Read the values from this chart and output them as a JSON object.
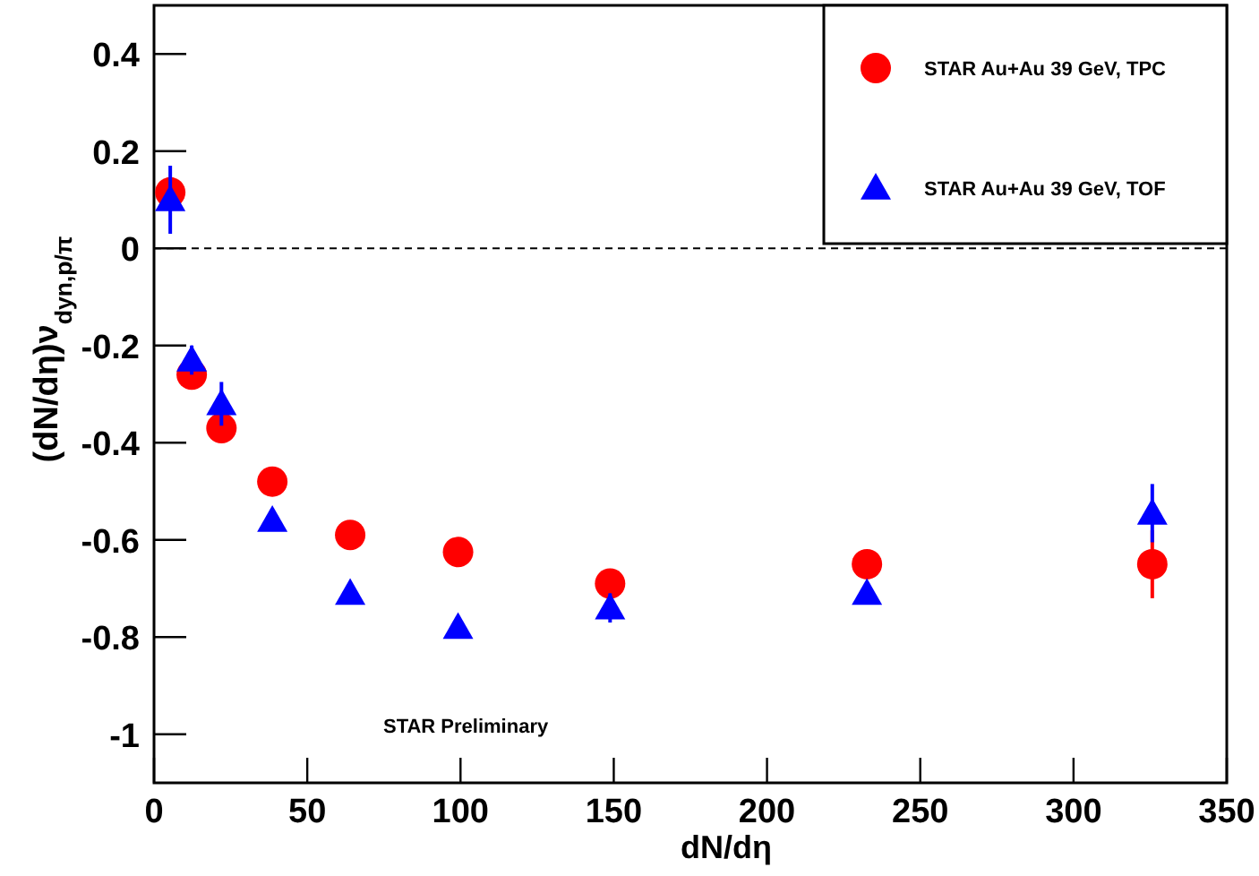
{
  "chart_data": {
    "type": "scatter",
    "xlabel": "dN/dη",
    "ylabel": "(dN/dη)ν$_{dyn,p/π}$",
    "xlim": [
      0,
      350
    ],
    "ylim": [
      -1.1,
      0.5
    ],
    "xticks": [
      0,
      50,
      100,
      150,
      200,
      250,
      300,
      350
    ],
    "yticks": [
      -1,
      -0.8,
      -0.6,
      -0.4,
      -0.2,
      0,
      0.2,
      0.4
    ],
    "grid": false,
    "legend": "top right",
    "ref_lines": [
      {
        "axis": "y",
        "value": 0,
        "line_style": "dashed",
        "color": "#000000"
      }
    ],
    "annotations": [
      "STAR Preliminary"
    ],
    "series": [
      {
        "name": "STAR Au+Au 39 GeV, TPC",
        "color": "#ff0000",
        "marker": "circle",
        "x": [
          5.3,
          12.3,
          22,
          38.6,
          64,
          99.2,
          148.8,
          232.6,
          325.7
        ],
        "values": [
          0.115,
          -0.26,
          -0.37,
          -0.48,
          -0.59,
          -0.625,
          -0.69,
          -0.65,
          -0.65
        ],
        "errors": [
          null,
          null,
          null,
          null,
          null,
          0.03,
          null,
          null,
          0.07
        ]
      },
      {
        "name": "STAR Au+Au 39 GeV, TOF",
        "color": "#0000ff",
        "marker": "triangle",
        "x": [
          5.3,
          12.3,
          22,
          38.6,
          64,
          99.2,
          148.8,
          232.6,
          325.7
        ],
        "values": [
          0.1,
          -0.23,
          -0.32,
          -0.56,
          -0.71,
          -0.78,
          -0.74,
          -0.71,
          -0.545
        ],
        "errors": [
          0.07,
          0.03,
          0.045,
          null,
          null,
          null,
          0.03,
          null,
          0.06
        ]
      }
    ]
  }
}
